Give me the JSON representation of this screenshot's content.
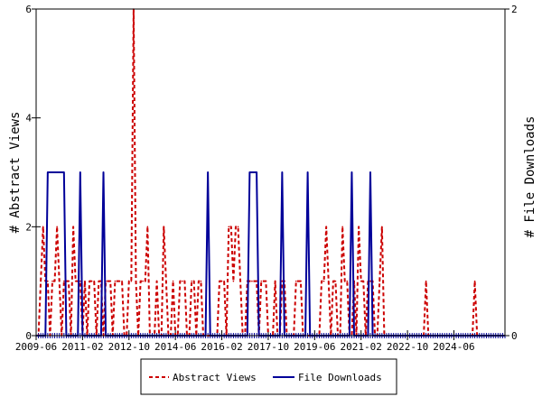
{
  "chart_data": {
    "type": "line",
    "title": "",
    "ylabel": "# Abstract Views",
    "y2label": "# File Downloads",
    "ylim": [
      0,
      6
    ],
    "y2lim": [
      0,
      2
    ],
    "yticks": [
      0,
      2,
      4,
      6
    ],
    "y2ticks": [
      0,
      2
    ],
    "xlim": [
      "2009-06",
      "2026-04"
    ],
    "xticks": [
      "2009-06",
      "2011-02",
      "2012-10",
      "2014-06",
      "2016-02",
      "2017-10",
      "2019-06",
      "2021-02",
      "2022-10",
      "2024-06"
    ],
    "legend": {
      "position": "bottom"
    },
    "colors": {
      "abstract_views": "#cc0000",
      "file_downloads": "#000099"
    },
    "series": [
      {
        "name": "Abstract Views",
        "axis": "left",
        "style": "dashed",
        "points": [
          [
            "2009-08",
            1
          ],
          [
            "2009-09",
            2
          ],
          [
            "2009-10",
            1
          ],
          [
            "2009-11",
            1
          ],
          [
            "2010-01",
            1
          ],
          [
            "2010-02",
            1
          ],
          [
            "2010-03",
            2
          ],
          [
            "2010-04",
            1
          ],
          [
            "2010-06",
            1
          ],
          [
            "2010-07",
            1
          ],
          [
            "2010-08",
            1
          ],
          [
            "2010-10",
            2
          ],
          [
            "2010-11",
            1
          ],
          [
            "2010-12",
            1
          ],
          [
            "2011-01",
            1
          ],
          [
            "2011-03",
            1
          ],
          [
            "2011-05",
            1
          ],
          [
            "2011-06",
            1
          ],
          [
            "2011-07",
            1
          ],
          [
            "2011-09",
            1
          ],
          [
            "2011-10",
            1
          ],
          [
            "2011-12",
            1
          ],
          [
            "2012-01",
            1
          ],
          [
            "2012-02",
            1
          ],
          [
            "2012-04",
            1
          ],
          [
            "2012-05",
            1
          ],
          [
            "2012-06",
            1
          ],
          [
            "2012-07",
            1
          ],
          [
            "2012-10",
            1
          ],
          [
            "2012-11",
            1
          ],
          [
            "2012-12",
            6
          ],
          [
            "2013-01",
            1
          ],
          [
            "2013-03",
            1
          ],
          [
            "2013-04",
            1
          ],
          [
            "2013-05",
            1
          ],
          [
            "2013-06",
            2
          ],
          [
            "2013-10",
            1
          ],
          [
            "2014-01",
            2
          ],
          [
            "2014-02",
            1
          ],
          [
            "2014-05",
            1
          ],
          [
            "2014-08",
            1
          ],
          [
            "2014-09",
            1
          ],
          [
            "2014-10",
            1
          ],
          [
            "2015-01",
            1
          ],
          [
            "2015-02",
            1
          ],
          [
            "2015-04",
            1
          ],
          [
            "2015-05",
            1
          ],
          [
            "2016-01",
            1
          ],
          [
            "2016-02",
            1
          ],
          [
            "2016-03",
            1
          ],
          [
            "2016-05",
            2
          ],
          [
            "2016-06",
            2
          ],
          [
            "2016-07",
            1
          ],
          [
            "2016-08",
            2
          ],
          [
            "2016-09",
            2
          ],
          [
            "2016-10",
            1
          ],
          [
            "2017-01",
            1
          ],
          [
            "2017-02",
            1
          ],
          [
            "2017-03",
            1
          ],
          [
            "2017-04",
            1
          ],
          [
            "2017-05",
            1
          ],
          [
            "2017-07",
            1
          ],
          [
            "2017-08",
            1
          ],
          [
            "2017-09",
            1
          ],
          [
            "2018-01",
            1
          ],
          [
            "2018-04",
            1
          ],
          [
            "2018-05",
            1
          ],
          [
            "2018-10",
            1
          ],
          [
            "2018-11",
            1
          ],
          [
            "2018-12",
            1
          ],
          [
            "2019-09",
            1
          ],
          [
            "2019-10",
            1
          ],
          [
            "2019-11",
            2
          ],
          [
            "2019-12",
            1
          ],
          [
            "2020-02",
            1
          ],
          [
            "2020-03",
            1
          ],
          [
            "2020-06",
            2
          ],
          [
            "2020-07",
            1
          ],
          [
            "2020-08",
            1
          ],
          [
            "2020-11",
            1
          ],
          [
            "2021-01",
            2
          ],
          [
            "2021-02",
            1
          ],
          [
            "2021-03",
            1
          ],
          [
            "2021-05",
            1
          ],
          [
            "2021-06",
            1
          ],
          [
            "2021-07",
            1
          ],
          [
            "2021-10",
            1
          ],
          [
            "2021-11",
            2
          ],
          [
            "2023-06",
            1
          ],
          [
            "2025-03",
            1
          ]
        ]
      },
      {
        "name": "File Downloads",
        "axis": "right",
        "style": "solid",
        "points": [
          [
            "2009-11",
            1
          ],
          [
            "2009-12",
            1
          ],
          [
            "2010-01",
            1
          ],
          [
            "2010-02",
            1
          ],
          [
            "2010-03",
            1
          ],
          [
            "2010-04",
            1
          ],
          [
            "2010-05",
            1
          ],
          [
            "2010-06",
            1
          ],
          [
            "2011-01",
            1
          ],
          [
            "2011-11",
            1
          ],
          [
            "2015-08",
            1
          ],
          [
            "2017-02",
            1
          ],
          [
            "2017-03",
            1
          ],
          [
            "2017-04",
            1
          ],
          [
            "2017-05",
            1
          ],
          [
            "2018-04",
            1
          ],
          [
            "2019-03",
            1
          ],
          [
            "2020-10",
            1
          ],
          [
            "2021-06",
            1
          ]
        ]
      }
    ]
  }
}
